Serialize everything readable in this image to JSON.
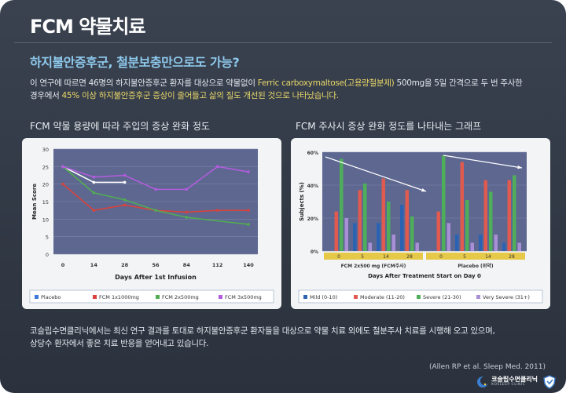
{
  "title": "FCM 약물치료",
  "subtitle": "하지불안증후군, 철분보충만으로도 가능?",
  "intro": {
    "line1_pre": "이 연구에 따르면 46명의 하지불안증후군 환자를 대상으로 약물없이 ",
    "line1_hl": "Ferric carboxymaltose(고용량철분제)",
    "line1_post": " 500mg을 5일 간격으로 두 번 주사한",
    "line2_pre": "경우에서 ",
    "line2_hl": "45% 이상 하지불안증후군 증상이 줄어들고 삶의 질도 개선된 것으로 나타났습니다."
  },
  "chart1_caption": "FCM 약물 용량에 따라 주입의 증상 완화 정도",
  "chart2_caption": "FCM 주사시 증상 완화 정도를 나타내는 그래프",
  "footer": {
    "line1": "코슬립수면클리닉에서는 최신 연구 결과를 토대로 하지불안증후군 환자들을 대상으로 약물 치료 외에도 철분주사 치료를 시행해 오고 있으며,",
    "line2": "상당수 환자에서 좋은 치료 반응을 얻어내고 있습니다."
  },
  "citation": "(Allen RP et al. Sleep Med. 2011)",
  "logo": {
    "text": "코슬립수면클리닉",
    "subtext": "KOSLEEP CLINIC",
    "icon": "moon-icon"
  },
  "colors": {
    "accent": "#8ec9ec",
    "highlight": "#e9d768",
    "plot_bg": "#5d6790"
  },
  "chart_data": [
    {
      "type": "line",
      "xlabel": "Days After 1st Infusion",
      "ylabel": "Mean Score",
      "x": [
        "0",
        "14",
        "28",
        "56",
        "84",
        "112",
        "140"
      ],
      "ylim": [
        0,
        30
      ],
      "yticks": [
        0,
        5,
        10,
        15,
        20,
        25,
        30
      ],
      "grid": true,
      "legend_position": "bottom",
      "series": [
        {
          "name": "Placebo",
          "color": "#3c78d8",
          "values": [
            25,
            20.5,
            20.5,
            null,
            null,
            null,
            null
          ]
        },
        {
          "name": "FCM 1x1000mg",
          "color": "#d8433c",
          "values": [
            20,
            12.5,
            14,
            12.5,
            12,
            12.5,
            12.5
          ]
        },
        {
          "name": "FCM 2x500mg",
          "color": "#52ad52",
          "values": [
            25,
            17.5,
            15.5,
            12.5,
            10.5,
            null,
            8.5
          ]
        },
        {
          "name": "FCM 3x500mg",
          "color": "#b35cdd",
          "values": [
            25,
            22,
            22.5,
            18.5,
            18.5,
            25,
            23.5
          ]
        }
      ]
    },
    {
      "type": "bar",
      "xlabel": "Days After Treatment Start on Day 0",
      "ylabel": "Subjects (%)",
      "ylim": [
        0,
        60
      ],
      "yticks": [
        "0%",
        "20%",
        "40%",
        "60%"
      ],
      "grid": true,
      "legend_position": "bottom",
      "groups": [
        {
          "name": "FCM 2x500 mg (FCM주사)",
          "days": [
            "0",
            "5",
            "14",
            "28"
          ]
        },
        {
          "name": "Placebo (위약)",
          "days": [
            "0",
            "5",
            "14",
            "28"
          ]
        }
      ],
      "series": [
        {
          "name": "Mild (0-10)",
          "color": "#2b63b3",
          "values": [
            0,
            17,
            17,
            28,
            0,
            10,
            10,
            5
          ]
        },
        {
          "name": "Moderate (11-20)",
          "color": "#e05a4f",
          "values": [
            24,
            37,
            44,
            37,
            24,
            54,
            43,
            43
          ]
        },
        {
          "name": "Severe (21-30)",
          "color": "#4fae5a",
          "values": [
            56,
            41,
            30,
            21,
            58,
            31,
            36,
            46
          ]
        },
        {
          "name": "Very Severe (31+)",
          "color": "#a98fd6",
          "values": [
            20,
            5,
            10,
            5,
            17,
            5,
            10,
            5
          ]
        }
      ]
    }
  ]
}
